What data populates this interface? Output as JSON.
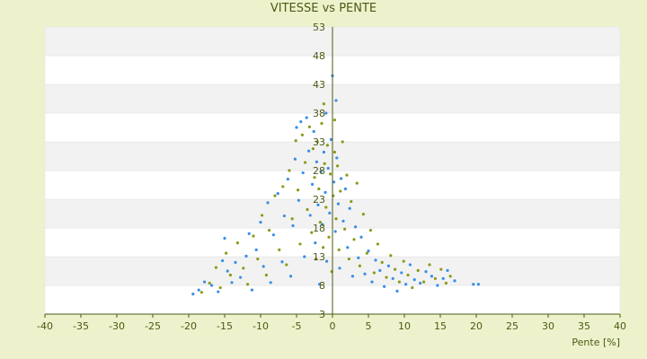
{
  "chart_data": {
    "type": "scatter",
    "title": "VITESSE vs PENTE",
    "xlabel": "Pente [%]",
    "ylabel": "",
    "xlim": [
      -40,
      40
    ],
    "ylim": [
      3,
      53
    ],
    "x_ticks": [
      "-40",
      "-35",
      "-30",
      "-25",
      "-20",
      "-15",
      "-10",
      "-5",
      "0",
      "5",
      "10",
      "15",
      "20",
      "25",
      "30",
      "35",
      "40"
    ],
    "y_ticks": [
      "3",
      "8",
      "13",
      "18",
      "23",
      "28",
      "33",
      "38",
      "43",
      "48",
      "53"
    ],
    "grid": "alternating horizontal bands",
    "series": [
      {
        "color": "#3a8ee6",
        "points": [
          [
            -19.4,
            6.5
          ],
          [
            -18.6,
            7.2
          ],
          [
            -17.8,
            8.6
          ],
          [
            -16.8,
            8.0
          ],
          [
            -15.9,
            6.9
          ],
          [
            -15.3,
            12.3
          ],
          [
            -15.0,
            16.2
          ],
          [
            -14.6,
            10.5
          ],
          [
            -14.0,
            8.5
          ],
          [
            -13.5,
            12.0
          ],
          [
            -12.8,
            9.4
          ],
          [
            -12.0,
            13.1
          ],
          [
            -11.6,
            17.0
          ],
          [
            -11.2,
            7.2
          ],
          [
            -10.6,
            14.2
          ],
          [
            -10.0,
            19.0
          ],
          [
            -9.6,
            11.3
          ],
          [
            -9.0,
            22.4
          ],
          [
            -8.6,
            8.5
          ],
          [
            -8.2,
            16.8
          ],
          [
            -7.6,
            24.0
          ],
          [
            -7.0,
            12.1
          ],
          [
            -6.7,
            20.1
          ],
          [
            -6.2,
            26.5
          ],
          [
            -5.8,
            9.6
          ],
          [
            -5.5,
            18.4
          ],
          [
            -5.2,
            30.0
          ],
          [
            -5.0,
            35.5
          ],
          [
            -4.7,
            22.8
          ],
          [
            -4.4,
            36.5
          ],
          [
            -4.1,
            27.6
          ],
          [
            -3.9,
            13.0
          ],
          [
            -3.6,
            37.2
          ],
          [
            -3.3,
            31.4
          ],
          [
            -3.1,
            20.2
          ],
          [
            -2.8,
            25.6
          ],
          [
            -2.6,
            34.8
          ],
          [
            -2.4,
            15.4
          ],
          [
            -2.2,
            29.5
          ],
          [
            -2.0,
            22.0
          ],
          [
            -1.8,
            8.2
          ],
          [
            -1.6,
            27.8
          ],
          [
            -1.4,
            18.6
          ],
          [
            -1.2,
            31.2
          ],
          [
            -1.0,
            24.2
          ],
          [
            -0.8,
            12.2
          ],
          [
            -0.6,
            28.4
          ],
          [
            -0.4,
            20.6
          ],
          [
            -0.2,
            33.4
          ],
          [
            0.0,
            44.5
          ],
          [
            0.2,
            26.0
          ],
          [
            0.4,
            17.4
          ],
          [
            0.6,
            30.2
          ],
          [
            0.8,
            22.2
          ],
          [
            1.0,
            11.0
          ],
          [
            1.2,
            26.6
          ],
          [
            1.5,
            19.2
          ],
          [
            1.8,
            24.8
          ],
          [
            2.1,
            14.6
          ],
          [
            2.4,
            21.4
          ],
          [
            2.8,
            9.6
          ],
          [
            3.2,
            18.2
          ],
          [
            3.6,
            12.8
          ],
          [
            4.0,
            16.4
          ],
          [
            4.5,
            10.0
          ],
          [
            5.0,
            14.0
          ],
          [
            5.5,
            8.6
          ],
          [
            6.0,
            12.4
          ],
          [
            6.6,
            10.6
          ],
          [
            7.2,
            7.8
          ],
          [
            7.8,
            11.4
          ],
          [
            8.4,
            9.2
          ],
          [
            9.0,
            7.0
          ],
          [
            9.6,
            10.2
          ],
          [
            10.2,
            8.2
          ],
          [
            10.8,
            11.6
          ],
          [
            11.4,
            9.0
          ],
          [
            12.2,
            8.4
          ],
          [
            13.0,
            10.4
          ],
          [
            13.8,
            9.6
          ],
          [
            14.6,
            8.0
          ],
          [
            15.4,
            9.2
          ],
          [
            16.0,
            10.6
          ],
          [
            17.0,
            8.8
          ],
          [
            19.6,
            8.2
          ],
          [
            20.3,
            8.2
          ],
          [
            -0.9,
            38.0
          ],
          [
            0.5,
            40.2
          ]
        ]
      },
      {
        "color": "#8a9a1a",
        "points": [
          [
            -18.2,
            6.8
          ],
          [
            -17.1,
            8.4
          ],
          [
            -16.2,
            11.1
          ],
          [
            -15.6,
            7.6
          ],
          [
            -14.8,
            13.6
          ],
          [
            -14.2,
            9.8
          ],
          [
            -13.2,
            15.4
          ],
          [
            -12.4,
            11.0
          ],
          [
            -11.8,
            8.2
          ],
          [
            -11.0,
            16.6
          ],
          [
            -10.4,
            12.6
          ],
          [
            -9.8,
            20.2
          ],
          [
            -9.2,
            9.8
          ],
          [
            -8.8,
            17.6
          ],
          [
            -8.0,
            23.6
          ],
          [
            -7.4,
            14.2
          ],
          [
            -6.9,
            25.2
          ],
          [
            -6.4,
            11.6
          ],
          [
            -6.0,
            28.0
          ],
          [
            -5.6,
            19.6
          ],
          [
            -5.1,
            33.2
          ],
          [
            -4.8,
            24.6
          ],
          [
            -4.5,
            15.2
          ],
          [
            -4.2,
            34.2
          ],
          [
            -3.8,
            29.4
          ],
          [
            -3.5,
            21.2
          ],
          [
            -3.2,
            35.6
          ],
          [
            -2.9,
            17.2
          ],
          [
            -2.7,
            31.8
          ],
          [
            -2.5,
            26.8
          ],
          [
            -2.3,
            12.6
          ],
          [
            -2.1,
            33.0
          ],
          [
            -1.9,
            24.8
          ],
          [
            -1.7,
            19.0
          ],
          [
            -1.5,
            36.2
          ],
          [
            -1.3,
            14.6
          ],
          [
            -1.1,
            29.2
          ],
          [
            -0.9,
            21.6
          ],
          [
            -0.7,
            32.4
          ],
          [
            -0.5,
            16.4
          ],
          [
            -0.3,
            27.4
          ],
          [
            -0.1,
            10.4
          ],
          [
            0.1,
            23.6
          ],
          [
            0.3,
            31.2
          ],
          [
            0.5,
            19.6
          ],
          [
            0.7,
            28.8
          ],
          [
            0.9,
            14.2
          ],
          [
            1.1,
            24.4
          ],
          [
            1.4,
            33.0
          ],
          [
            1.7,
            17.8
          ],
          [
            2.0,
            27.2
          ],
          [
            2.3,
            12.6
          ],
          [
            2.6,
            22.6
          ],
          [
            3.0,
            16.0
          ],
          [
            3.4,
            25.8
          ],
          [
            3.8,
            11.4
          ],
          [
            4.3,
            20.4
          ],
          [
            4.8,
            13.6
          ],
          [
            5.3,
            17.6
          ],
          [
            5.8,
            10.2
          ],
          [
            6.3,
            15.2
          ],
          [
            6.9,
            12.0
          ],
          [
            7.5,
            9.4
          ],
          [
            8.1,
            13.2
          ],
          [
            8.7,
            10.8
          ],
          [
            9.3,
            8.6
          ],
          [
            9.9,
            12.2
          ],
          [
            10.5,
            9.8
          ],
          [
            11.1,
            7.6
          ],
          [
            11.9,
            10.6
          ],
          [
            12.7,
            8.6
          ],
          [
            13.5,
            11.6
          ],
          [
            14.3,
            9.2
          ],
          [
            15.1,
            10.8
          ],
          [
            15.8,
            8.4
          ],
          [
            16.4,
            9.6
          ],
          [
            -1.2,
            39.6
          ],
          [
            0.3,
            36.8
          ]
        ]
      }
    ]
  }
}
